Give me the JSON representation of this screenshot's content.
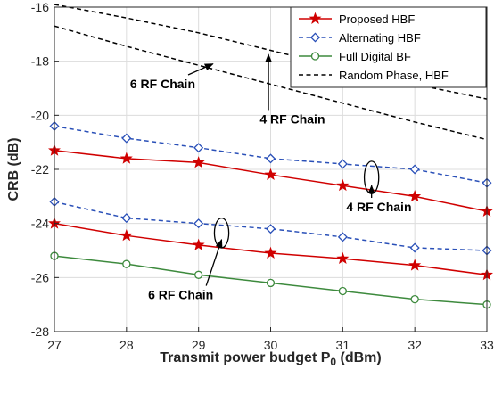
{
  "chart_data": {
    "type": "line",
    "title": "",
    "xlabel": "Transmit power budget P",
    "xlabel_subscript": "0",
    "xlabel_unit": " (dBm)",
    "ylabel": "CRB (dB)",
    "xlim": [
      27,
      33
    ],
    "ylim": [
      -28,
      -16
    ],
    "xticks": [
      27,
      28,
      29,
      30,
      31,
      32,
      33
    ],
    "yticks": [
      -28,
      -26,
      -24,
      -22,
      -20,
      -18,
      -16
    ],
    "grid": true,
    "legend_position": "top-right",
    "legend": [
      {
        "label": "Proposed HBF",
        "color": "#d00000",
        "marker": "star",
        "dash": "solid"
      },
      {
        "label": "Alternating HBF",
        "color": "#2a50b8",
        "marker": "diamond",
        "dash": "dashed"
      },
      {
        "label": "Full Digital BF",
        "color": "#3d8a3d",
        "marker": "circle",
        "dash": "solid"
      },
      {
        "label": "Random Phase, HBF",
        "color": "#000000",
        "marker": "none",
        "dash": "dashed"
      }
    ],
    "series": [
      {
        "legend_index": 0,
        "group": "4 RF Chain",
        "x": [
          27,
          28,
          29,
          30,
          31,
          32,
          33
        ],
        "y": [
          -21.3,
          -21.6,
          -21.75,
          -22.2,
          -22.6,
          -23.0,
          -23.55
        ]
      },
      {
        "legend_index": 0,
        "group": "6 RF Chain",
        "x": [
          27,
          28,
          29,
          30,
          31,
          32,
          33
        ],
        "y": [
          -24.0,
          -24.45,
          -24.8,
          -25.1,
          -25.3,
          -25.55,
          -25.9
        ]
      },
      {
        "legend_index": 1,
        "group": "4 RF Chain",
        "x": [
          27,
          28,
          29,
          30,
          31,
          32,
          33
        ],
        "y": [
          -20.4,
          -20.85,
          -21.2,
          -21.6,
          -21.8,
          -22.0,
          -22.5
        ]
      },
      {
        "legend_index": 1,
        "group": "6 RF Chain",
        "x": [
          27,
          28,
          29,
          30,
          31,
          32,
          33
        ],
        "y": [
          -23.2,
          -23.8,
          -24.0,
          -24.2,
          -24.5,
          -24.9,
          -25.0
        ]
      },
      {
        "legend_index": 2,
        "group": "",
        "x": [
          27,
          28,
          29,
          30,
          31,
          32,
          33
        ],
        "y": [
          -25.2,
          -25.5,
          -25.9,
          -26.2,
          -26.5,
          -26.8,
          -27.0
        ]
      },
      {
        "legend_index": 3,
        "group": "4 RF Chain",
        "x": [
          27,
          28,
          29,
          30,
          31,
          32,
          33
        ],
        "y": [
          -16.7,
          -17.45,
          -18.15,
          -18.85,
          -19.55,
          -20.25,
          -20.9
        ]
      },
      {
        "legend_index": 3,
        "group": "6 RF Chain",
        "x": [
          27,
          28,
          29,
          30,
          31,
          32,
          33
        ],
        "y": [
          -15.9,
          -16.4,
          -16.95,
          -17.6,
          -18.25,
          -18.85,
          -19.4
        ]
      }
    ],
    "annotations": [
      {
        "text": "6 RF Chain",
        "x": 28.05,
        "y": -19.0,
        "arrow_to": [
          29.2,
          -18.1
        ],
        "ellipse": null
      },
      {
        "text": "4 RF Chain",
        "x": 29.85,
        "y": -20.3,
        "arrow_to": [
          29.97,
          -17.75
        ],
        "ellipse": null
      },
      {
        "text": "4 RF Chain",
        "x": 31.05,
        "y": -23.55,
        "arrow_to": [
          31.4,
          -22.6
        ],
        "ellipse": {
          "cx": 31.4,
          "cy": -22.3,
          "rx": 0.1,
          "ry": 0.6
        }
      },
      {
        "text": "6 RF Chain",
        "x": 28.3,
        "y": -26.8,
        "arrow_to": [
          29.32,
          -24.6
        ],
        "ellipse": {
          "cx": 29.32,
          "cy": -24.35,
          "rx": 0.1,
          "ry": 0.55
        }
      }
    ]
  }
}
